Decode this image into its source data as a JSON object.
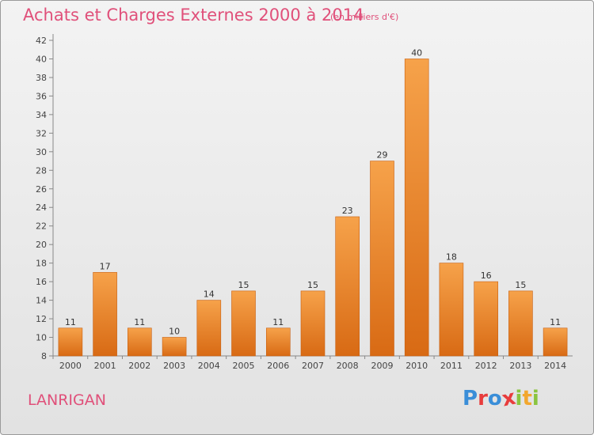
{
  "chart_data": {
    "type": "bar",
    "title": "Achats et Charges Externes 2000 à 2014",
    "unit_label": "(en milliers d'€)",
    "categories": [
      "2000",
      "2001",
      "2002",
      "2003",
      "2004",
      "2005",
      "2006",
      "2007",
      "2008",
      "2009",
      "2010",
      "2011",
      "2012",
      "2013",
      "2014"
    ],
    "values": [
      11,
      17,
      11,
      10,
      14,
      15,
      11,
      15,
      23,
      29,
      40,
      18,
      16,
      15,
      11
    ],
    "ylim": [
      8,
      42
    ],
    "yticks": [
      8,
      10,
      12,
      14,
      16,
      18,
      20,
      22,
      24,
      26,
      28,
      30,
      32,
      34,
      36,
      38,
      40,
      42
    ],
    "grid": false,
    "legend": "none",
    "colors": {
      "bar_light": "#f6a24a",
      "bar_dark": "#d86a14",
      "bar_edge": "#c85f10",
      "title": "#e0507a"
    }
  },
  "footer": {
    "commune": "LANRIGAN",
    "brand_letters": [
      {
        "char": "P",
        "color": "#3a8ed8"
      },
      {
        "char": "r",
        "color": "#e83c3c"
      },
      {
        "char": "o",
        "color": "#3a8ed8"
      },
      {
        "char": "x",
        "color": "#e83c3c"
      },
      {
        "char": "i",
        "color": "#8ac43f"
      },
      {
        "char": "t",
        "color": "#f2a72e"
      },
      {
        "char": "i",
        "color": "#8ac43f"
      }
    ]
  }
}
